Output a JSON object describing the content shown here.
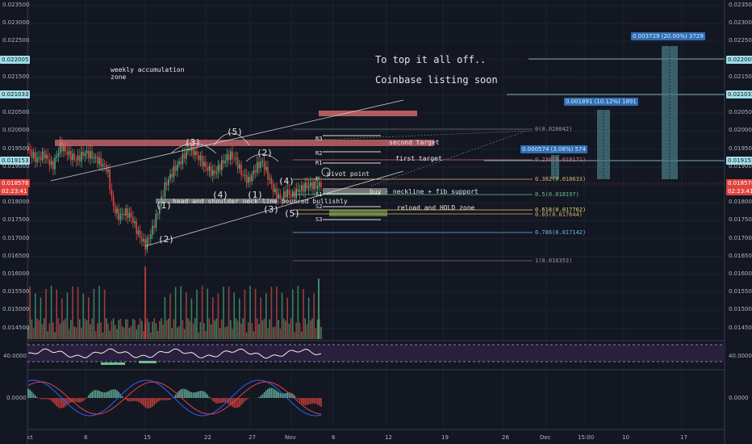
{
  "y_axis": {
    "ticks": [
      "0.023500",
      "0.023000",
      "0.022500",
      "0.022000",
      "0.021500",
      "0.021000",
      "0.020500",
      "0.020000",
      "0.019500",
      "0.019000",
      "0.018500",
      "0.018000",
      "0.017500",
      "0.017000",
      "0.016500",
      "0.016000",
      "0.015500",
      "0.015000",
      "0.014500"
    ],
    "tag_left_top": "0.022005",
    "tag_left_2": "0.021033",
    "tag_left_3": "0.019153",
    "tag_left_current": "0.018578",
    "tag_left_countdown": "02:23:41",
    "tag_right_top": "0.022005",
    "tag_right_2": "0.021033",
    "tag_right_3": "0.019153",
    "tag_right_current": "0.018578",
    "tag_right_countdown": "02:23:41"
  },
  "x_axis": {
    "ticks": [
      "ct",
      "8",
      "15",
      "22",
      "27",
      "Nov",
      "6",
      "12",
      "19",
      "26",
      "Dec",
      "15:00",
      "10",
      "17"
    ]
  },
  "rsi": {
    "level_left": "40.0000",
    "level_right": "40.0000"
  },
  "macd": {
    "level_left": "0.0000",
    "level_right": "0.0000"
  },
  "annotations": {
    "weekly": "weekly accumulation",
    "weekly_2": "zone",
    "top_it": "To top it all off..",
    "coinbase": "Coinbase listing soon",
    "second_target": "second target",
    "first_target": "first target",
    "pivot": "pivot point",
    "buy": "buy - neckline + fib support",
    "reload": "reload and HOLD zone",
    "head_shoulder": "head and shoulder neck line bounced bullishly",
    "wave_3a": "(3)",
    "wave_5a": "(5)",
    "wave_2a": "(2)",
    "wave_1": "(1)",
    "wave_2b": "(2)",
    "wave_4a": "(4)",
    "wave_1b": "(1)",
    "wave_3b": "(3)",
    "wave_4b": "(4)",
    "wave_5b": "(5)"
  },
  "pivots": {
    "r3": "R3",
    "r2": "R2",
    "r1": "R1",
    "p": "P",
    "s1": "S1",
    "s2": "S2",
    "s3": "S3"
  },
  "fib": {
    "f0": "0(0.020042)",
    "f236": "0.236(0.019171)",
    "f382": "0.382(0.018633)",
    "f5": "0.5(0.018197)",
    "f618": "0.618(0.017762)",
    "f65": "0.65(0.017644)",
    "f786": "0.786(0.017142)",
    "f1": "1(0.016353)"
  },
  "targets": {
    "t1": "0.000574 (3.08%) 574",
    "t2": "0.001891 (10.12%) 1891",
    "t3": "0.003729 (20.00%) 3729"
  }
}
